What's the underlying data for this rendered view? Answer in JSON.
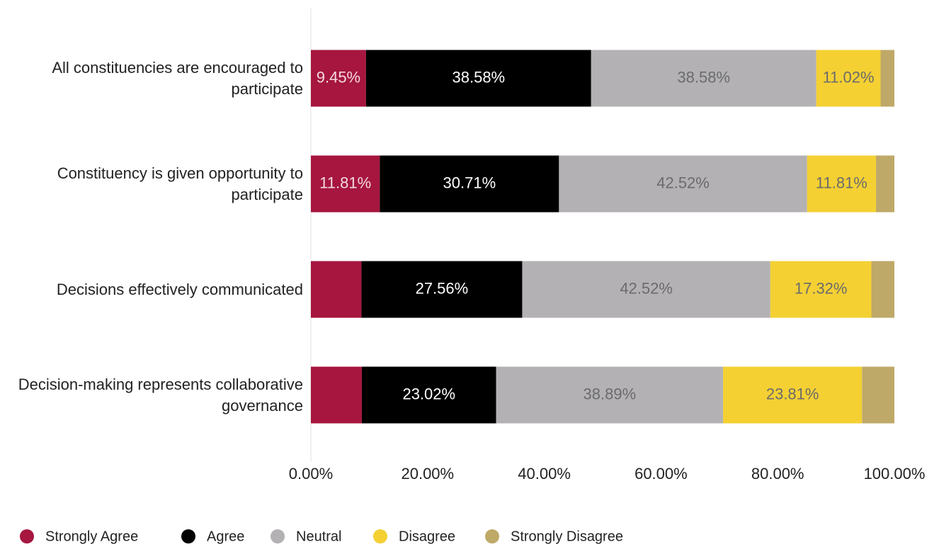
{
  "chart_data": {
    "type": "stacked-bar-horizontal",
    "categories": [
      "All constituencies are encouraged to participate",
      "Constituency is given opportunity to participate",
      "Decisions effectively communicated",
      "Decision-making represents collaborative governance"
    ],
    "series": [
      {
        "name": "Strongly Agree",
        "color": "#a6163f",
        "values": [
          9.45,
          11.81,
          8.66,
          8.73
        ],
        "value_labels": [
          "9.45%",
          "11.81%",
          null,
          null
        ]
      },
      {
        "name": "Agree",
        "color": "#000000",
        "values": [
          38.58,
          30.71,
          27.56,
          23.02
        ],
        "value_labels": [
          "38.58%",
          "30.71%",
          "27.56%",
          "23.02%"
        ]
      },
      {
        "name": "Neutral",
        "color": "#b3b1b4",
        "values": [
          38.58,
          42.52,
          42.52,
          38.89
        ],
        "value_labels": [
          "38.58%",
          "42.52%",
          "42.52%",
          "38.89%"
        ]
      },
      {
        "name": "Disagree",
        "color": "#f4d033",
        "values": [
          11.02,
          11.81,
          17.32,
          23.81
        ],
        "value_labels": [
          "11.02%",
          "11.81%",
          "17.32%",
          "23.81%"
        ]
      },
      {
        "name": "Strongly Disagree",
        "color": "#bfa968",
        "values": [
          2.37,
          3.15,
          3.94,
          5.55
        ],
        "value_labels": [
          null,
          null,
          null,
          null
        ]
      }
    ],
    "xlim": [
      0,
      100
    ],
    "xticks": [
      {
        "value": 0,
        "label": "0.00%"
      },
      {
        "value": 20,
        "label": "20.00%"
      },
      {
        "value": 40,
        "label": "40.00%"
      },
      {
        "value": 60,
        "label": "60.00%"
      },
      {
        "value": 80,
        "label": "80.00%"
      },
      {
        "value": 100,
        "label": "100.00%"
      }
    ],
    "legend": "bottom-left"
  }
}
